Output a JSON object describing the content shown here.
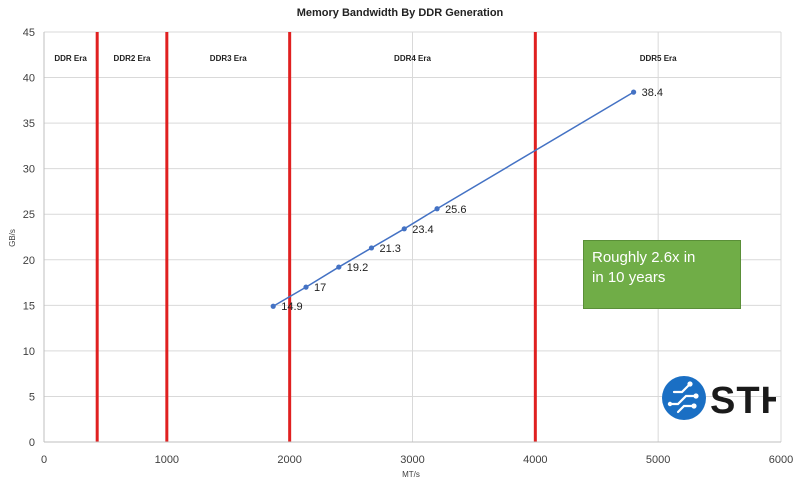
{
  "chart_data": {
    "type": "scatter",
    "title": "Memory Bandwidth By DDR Generation",
    "xlabel": "MT/s",
    "ylabel": "GB/s",
    "xlim": [
      0,
      6000
    ],
    "ylim": [
      0,
      45
    ],
    "xticks": [
      0,
      1000,
      2000,
      3000,
      4000,
      5000,
      6000
    ],
    "yticks": [
      0,
      5,
      10,
      15,
      20,
      25,
      30,
      35,
      40,
      45
    ],
    "grid": true,
    "series": [
      {
        "color": "#4472c4",
        "points": [
          {
            "x": 1866,
            "y": 14.9,
            "label": "14.9"
          },
          {
            "x": 2133,
            "y": 17,
            "label": "17"
          },
          {
            "x": 2400,
            "y": 19.2,
            "label": "19.2"
          },
          {
            "x": 2666,
            "y": 21.3,
            "label": "21.3"
          },
          {
            "x": 2933,
            "y": 23.4,
            "label": "23.4"
          },
          {
            "x": 3200,
            "y": 25.6,
            "label": "25.6"
          },
          {
            "x": 4800,
            "y": 38.4,
            "label": "38.4"
          }
        ]
      }
    ],
    "era_dividers": {
      "color": "#e02020",
      "x": [
        433,
        1000,
        2000,
        4000
      ]
    },
    "eras": [
      {
        "label": "DDR Era",
        "from": 0,
        "to": 433
      },
      {
        "label": "DDR2 Era",
        "from": 433,
        "to": 1000
      },
      {
        "label": "DDR3 Era",
        "from": 1000,
        "to": 2000
      },
      {
        "label": "DDR4 Era",
        "from": 2000,
        "to": 4000
      },
      {
        "label": "DDR5 Era",
        "from": 4000,
        "to": 6000
      }
    ]
  },
  "callout": {
    "line1": "Roughly 2.6x in",
    "line2": "in 10 years",
    "color": "#70ad47"
  },
  "logo": {
    "text": "STH",
    "color": "#1a6fc4"
  }
}
